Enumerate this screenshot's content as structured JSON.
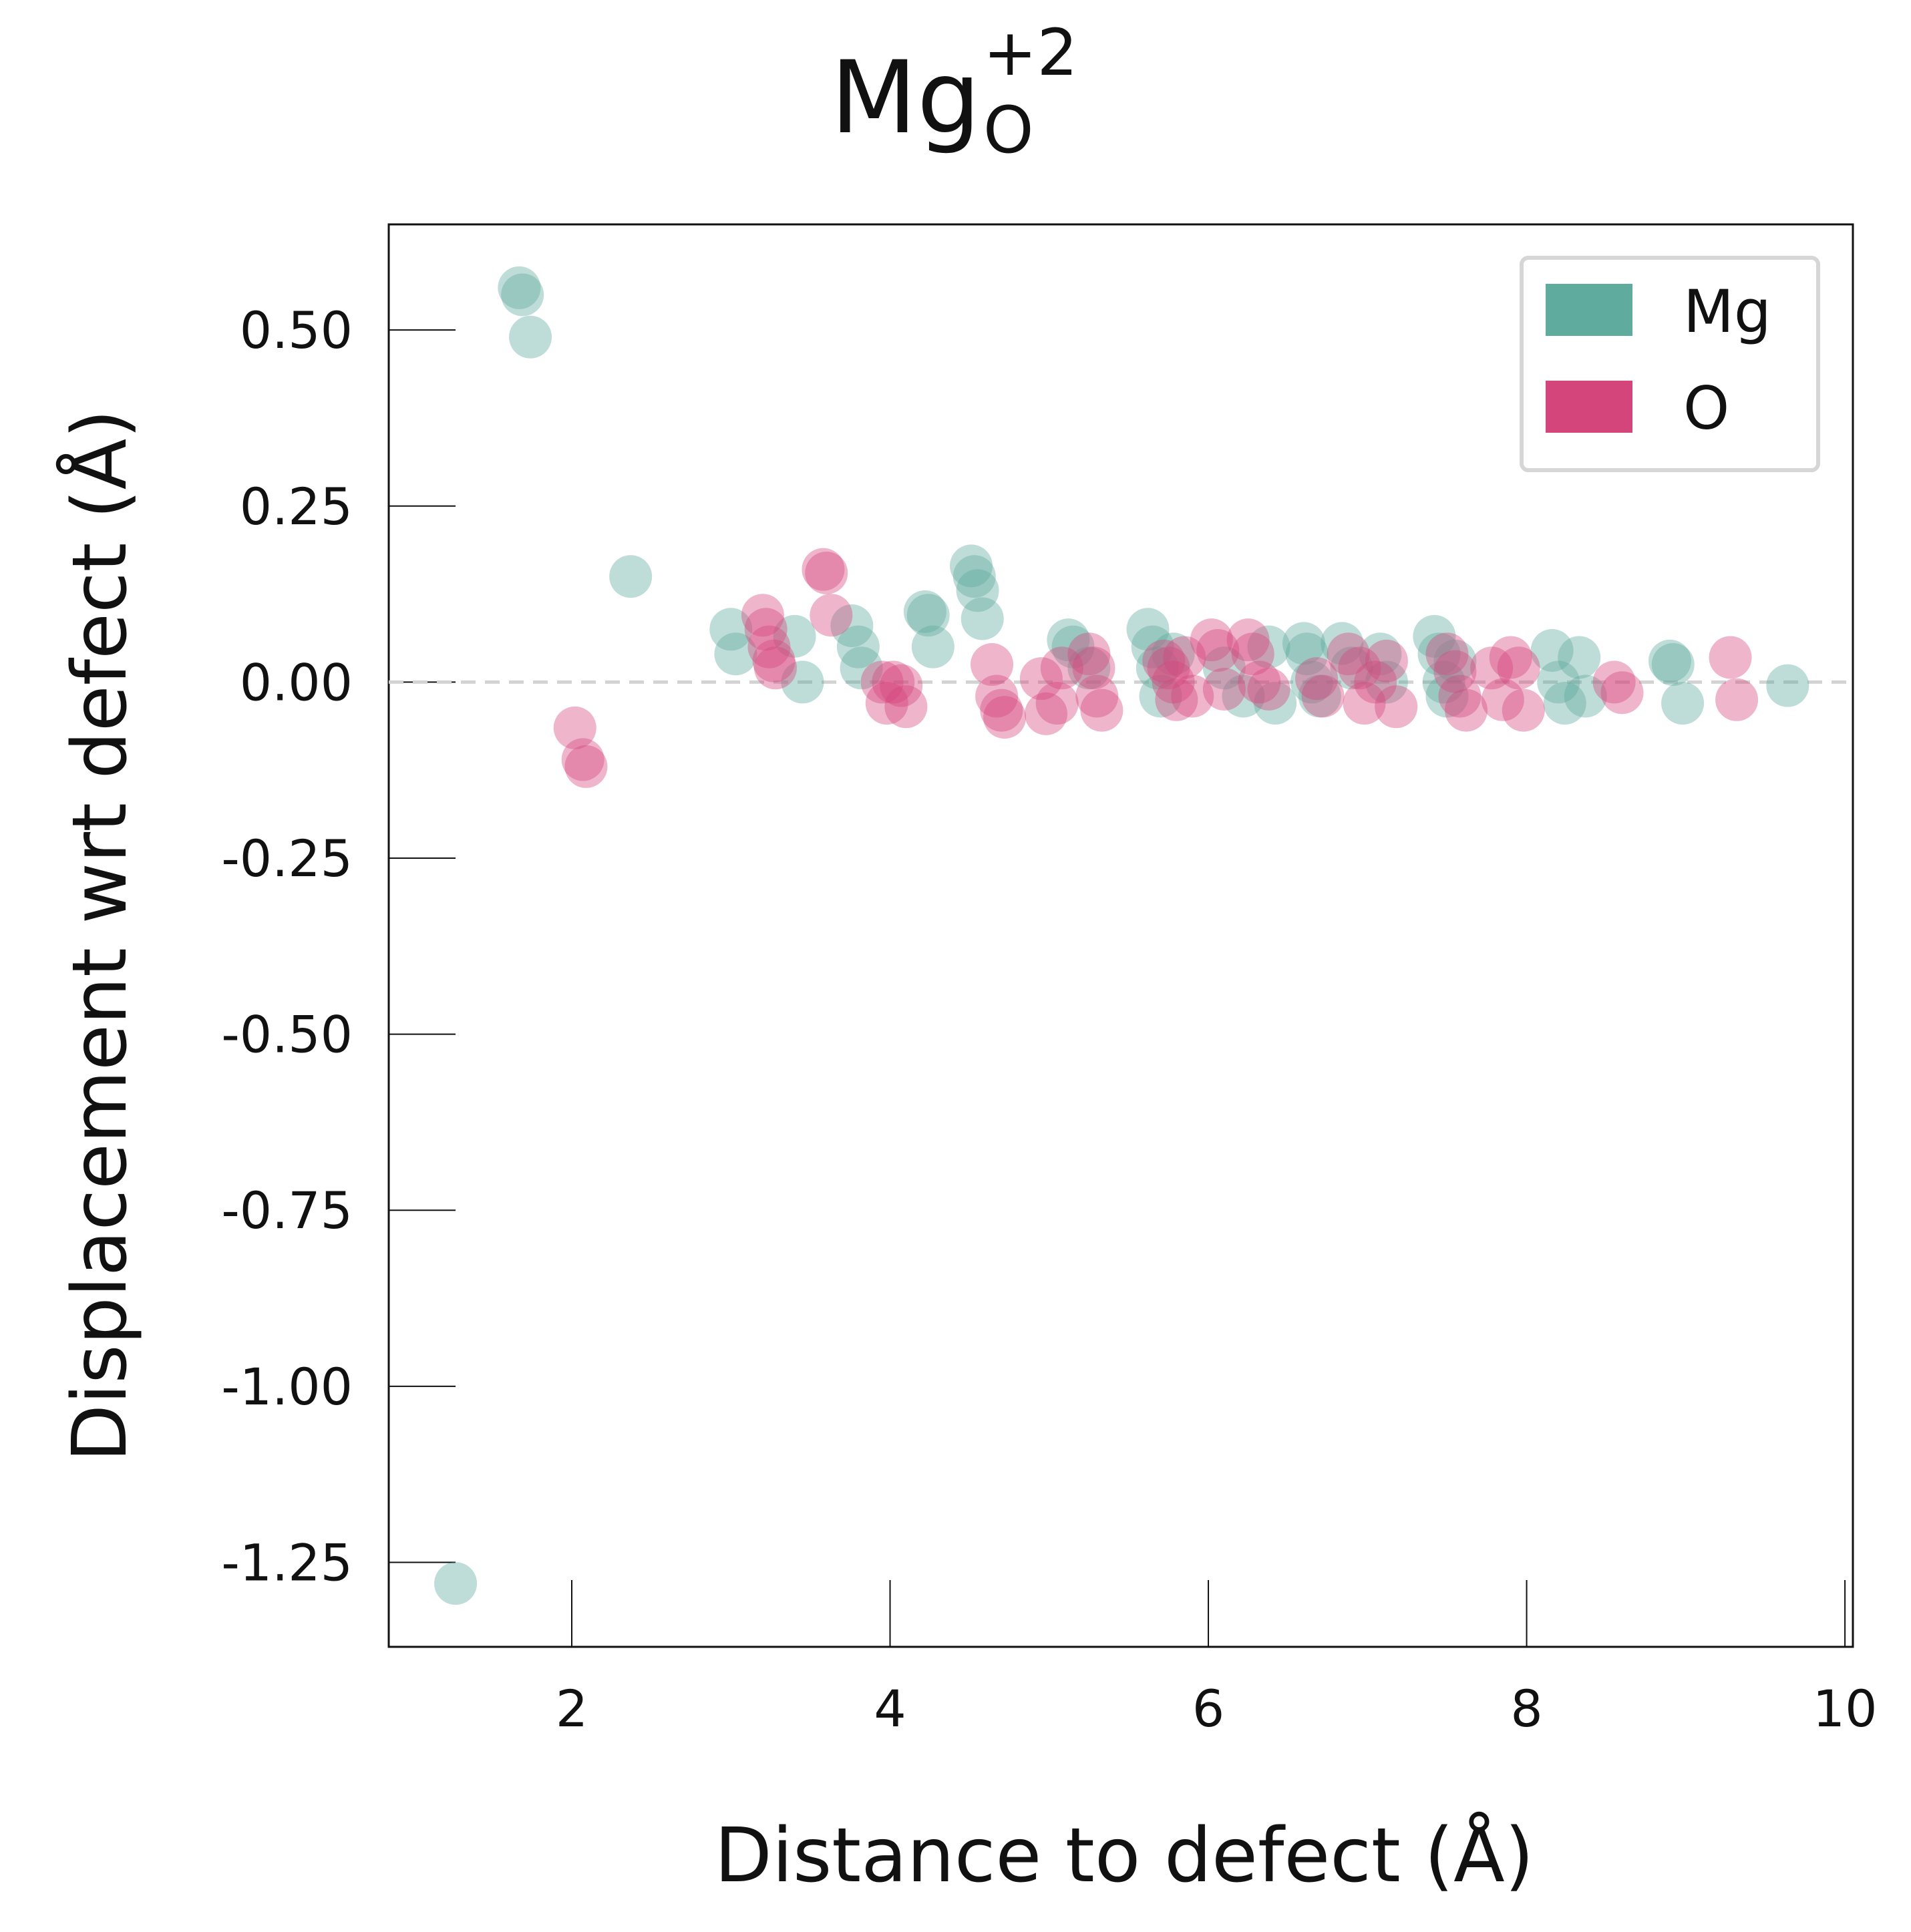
{
  "chart_data": {
    "type": "scatter",
    "title": {
      "base": "Mg",
      "subscript": "O",
      "superscript": "+2"
    },
    "xlabel": "Distance to defect (Å)",
    "ylabel": "Displacement wrt defect (Å)",
    "xlim": [
      0.85,
      10.05
    ],
    "ylim": [
      -1.37,
      0.65
    ],
    "xticks": [
      2,
      4,
      6,
      8,
      10
    ],
    "xtick_labels": [
      "2",
      "4",
      "6",
      "8",
      "10"
    ],
    "yticks": [
      0.5,
      0.25,
      0.0,
      -0.25,
      -0.5,
      -0.75,
      -1.0,
      -1.25
    ],
    "ytick_labels": [
      "0.50",
      "0.25",
      "0.00",
      "-0.25",
      "-0.50",
      "-0.75",
      "-1.00",
      "-1.25"
    ],
    "reference_line": {
      "y": 0.0,
      "style": "dashed",
      "color": "#d3d3d3"
    },
    "grid": false,
    "legend_position": "top-right",
    "series": [
      {
        "name": "Mg",
        "color": "#5fab9e",
        "points": [
          [
            1.27,
            -1.28
          ],
          [
            1.67,
            0.56
          ],
          [
            1.69,
            0.55
          ],
          [
            1.74,
            0.49
          ],
          [
            2.37,
            0.15
          ],
          [
            3.0,
            0.075
          ],
          [
            3.03,
            0.04
          ],
          [
            3.4,
            0.065
          ],
          [
            3.45,
            0.0
          ],
          [
            3.76,
            0.08
          ],
          [
            3.8,
            0.05
          ],
          [
            3.82,
            0.02
          ],
          [
            4.22,
            0.1
          ],
          [
            4.24,
            0.095
          ],
          [
            4.27,
            0.05
          ],
          [
            4.51,
            0.165
          ],
          [
            4.53,
            0.15
          ],
          [
            4.55,
            0.13
          ],
          [
            4.58,
            0.09
          ],
          [
            5.12,
            0.06
          ],
          [
            5.15,
            0.05
          ],
          [
            5.25,
            0.02
          ],
          [
            5.62,
            0.075
          ],
          [
            5.65,
            0.05
          ],
          [
            5.68,
            0.02
          ],
          [
            5.7,
            -0.02
          ],
          [
            5.78,
            0.04
          ],
          [
            6.1,
            0.02
          ],
          [
            6.22,
            -0.02
          ],
          [
            6.38,
            0.05
          ],
          [
            6.42,
            -0.03
          ],
          [
            6.6,
            0.055
          ],
          [
            6.62,
            0.04
          ],
          [
            6.65,
            0.0
          ],
          [
            6.7,
            -0.02
          ],
          [
            6.84,
            0.055
          ],
          [
            6.9,
            0.02
          ],
          [
            7.08,
            0.04
          ],
          [
            7.12,
            0.0
          ],
          [
            7.42,
            0.065
          ],
          [
            7.45,
            0.04
          ],
          [
            7.48,
            0.0
          ],
          [
            7.5,
            -0.02
          ],
          [
            7.55,
            0.03
          ],
          [
            8.16,
            0.045
          ],
          [
            8.2,
            0.0
          ],
          [
            8.24,
            -0.03
          ],
          [
            8.33,
            0.035
          ],
          [
            8.37,
            -0.02
          ],
          [
            8.9,
            0.03
          ],
          [
            8.92,
            0.025
          ],
          [
            8.98,
            -0.03
          ],
          [
            9.64,
            -0.005
          ]
        ]
      },
      {
        "name": "O",
        "color": "#d4457c",
        "points": [
          [
            2.02,
            -0.065
          ],
          [
            2.07,
            -0.11
          ],
          [
            2.09,
            -0.12
          ],
          [
            3.2,
            0.095
          ],
          [
            3.22,
            0.075
          ],
          [
            3.24,
            0.05
          ],
          [
            3.27,
            0.03
          ],
          [
            3.28,
            0.02
          ],
          [
            3.58,
            0.16
          ],
          [
            3.6,
            0.155
          ],
          [
            3.63,
            0.095
          ],
          [
            3.95,
            0.0
          ],
          [
            3.98,
            -0.03
          ],
          [
            4.02,
            0.0
          ],
          [
            4.07,
            -0.005
          ],
          [
            4.1,
            -0.035
          ],
          [
            4.64,
            0.025
          ],
          [
            4.67,
            -0.02
          ],
          [
            4.7,
            -0.04
          ],
          [
            4.72,
            -0.05
          ],
          [
            4.95,
            0.005
          ],
          [
            4.98,
            -0.045
          ],
          [
            5.05,
            -0.03
          ],
          [
            5.08,
            0.02
          ],
          [
            5.25,
            0.04
          ],
          [
            5.28,
            0.02
          ],
          [
            5.3,
            -0.02
          ],
          [
            5.33,
            -0.04
          ],
          [
            5.72,
            0.03
          ],
          [
            5.75,
            0.02
          ],
          [
            5.78,
            0.0
          ],
          [
            5.8,
            -0.025
          ],
          [
            5.85,
            0.035
          ],
          [
            5.9,
            -0.02
          ],
          [
            6.02,
            0.06
          ],
          [
            6.06,
            0.045
          ],
          [
            6.1,
            -0.01
          ],
          [
            6.25,
            0.06
          ],
          [
            6.28,
            0.04
          ],
          [
            6.32,
            0.0
          ],
          [
            6.38,
            -0.01
          ],
          [
            6.68,
            0.005
          ],
          [
            6.72,
            -0.02
          ],
          [
            6.88,
            0.04
          ],
          [
            6.95,
            0.02
          ],
          [
            6.98,
            -0.03
          ],
          [
            7.05,
            0.0
          ],
          [
            7.12,
            0.03
          ],
          [
            7.18,
            -0.035
          ],
          [
            7.5,
            0.04
          ],
          [
            7.55,
            0.015
          ],
          [
            7.58,
            -0.02
          ],
          [
            7.62,
            -0.04
          ],
          [
            7.78,
            0.02
          ],
          [
            7.85,
            -0.025
          ],
          [
            7.9,
            0.035
          ],
          [
            7.95,
            0.02
          ],
          [
            7.98,
            -0.04
          ],
          [
            8.55,
            0.0
          ],
          [
            8.6,
            -0.015
          ],
          [
            9.28,
            0.035
          ],
          [
            9.32,
            -0.025
          ]
        ]
      }
    ]
  }
}
